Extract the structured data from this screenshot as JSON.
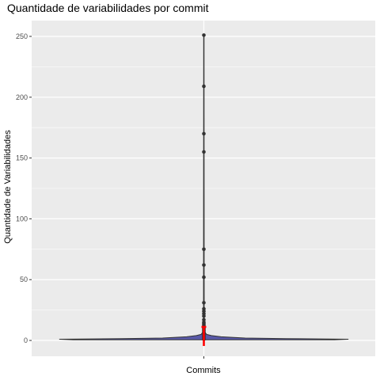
{
  "chart_data": {
    "type": "violin",
    "title": "Quantidade de variabilidades por commit",
    "xlabel": "Commits",
    "ylabel": "Quantidade de Variabilidades",
    "ylim": [
      -13,
      263
    ],
    "yticks": [
      0,
      50,
      100,
      150,
      200,
      250
    ],
    "ytick_labels": [
      "0",
      "50",
      "100",
      "150",
      "200",
      "250"
    ],
    "xticks": [
      ""
    ],
    "grid": true,
    "legend": "none",
    "colors": {
      "panel": "#EBEBEB",
      "grid": "#FFFFFF",
      "violin_fill": "#5959A8",
      "violin_line": "#333333",
      "points": "#333333",
      "median_marker": "#FF0000"
    },
    "violin": {
      "median": 2,
      "profile": [
        {
          "y": 0.5,
          "halfwidth": 0.38
        },
        {
          "y": 1.0,
          "halfwidth": 0.42
        },
        {
          "y": 1.5,
          "halfwidth": 0.24
        },
        {
          "y": 2.0,
          "halfwidth": 0.12
        },
        {
          "y": 3.0,
          "halfwidth": 0.05
        },
        {
          "y": 4.0,
          "halfwidth": 0.022
        },
        {
          "y": 5.0,
          "halfwidth": 0.008
        },
        {
          "y": 7.0,
          "halfwidth": 0.0025
        },
        {
          "y": 10.0,
          "halfwidth": 0.001
        },
        {
          "y": 251.0,
          "halfwidth": 0.0005
        }
      ]
    },
    "points": [
      1,
      2,
      3,
      4,
      5,
      6,
      7,
      8,
      9,
      10,
      11,
      12,
      13,
      14,
      15,
      17,
      20,
      22,
      24,
      26,
      31,
      52,
      62,
      75,
      155,
      170,
      209,
      251
    ]
  }
}
